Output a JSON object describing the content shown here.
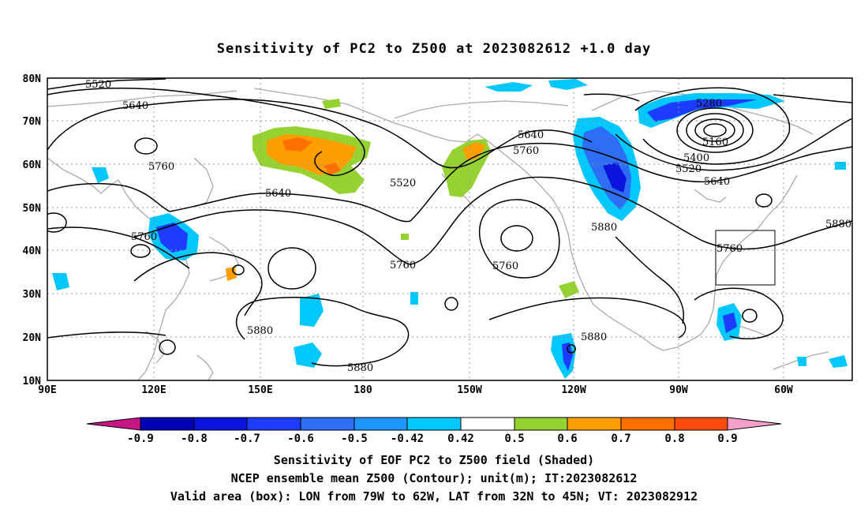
{
  "title": "Sensitivity of PC2 to Z500 at 2023082612 +1.0 day",
  "map": {
    "lon_ticks": [
      "90E",
      "120E",
      "150E",
      "180",
      "150W",
      "120W",
      "90W",
      "60W"
    ],
    "lat_ticks": [
      "80N",
      "70N",
      "60N",
      "50N",
      "40N",
      "30N",
      "20N",
      "10N"
    ],
    "lon_range": [
      "90E",
      "45W"
    ],
    "lat_range": [
      "10N",
      "80N"
    ],
    "grid": "dotted",
    "contour_labels": [
      "5520",
      "5640",
      "5760",
      "5640",
      "5760",
      "5520",
      "5640",
      "5760",
      "5760",
      "5760",
      "5880",
      "5880",
      "5880",
      "5880",
      "5280",
      "5160",
      "5400",
      "5520",
      "5640",
      "5880",
      "5760"
    ],
    "valid_box": {
      "lon": [
        "79W",
        "62W"
      ],
      "lat": [
        "32N",
        "45N"
      ]
    }
  },
  "colorbar": {
    "labels": [
      "-0.9",
      "-0.8",
      "-0.7",
      "-0.6",
      "-0.5",
      "-0.42",
      "0.42",
      "0.5",
      "0.6",
      "0.7",
      "0.8",
      "0.9"
    ],
    "colors": [
      "#c71585",
      "#0000b4",
      "#0a14dc",
      "#1e3cff",
      "#2e6ef5",
      "#1e96ff",
      "#00c8ff",
      "#ffffff",
      "#96d232",
      "#ff9e00",
      "#ff7000",
      "#ff4a10",
      "#ff0000",
      "#f5a0c8"
    ]
  },
  "captions": [
    "Sensitivity of EOF PC2 to Z500 field (Shaded)",
    "NCEP ensemble mean Z500 (Contour); unit(m); IT:2023082612",
    "Valid area (box): LON from 79W to 62W, LAT from 32N to 45N; VT: 2023082912"
  ]
}
